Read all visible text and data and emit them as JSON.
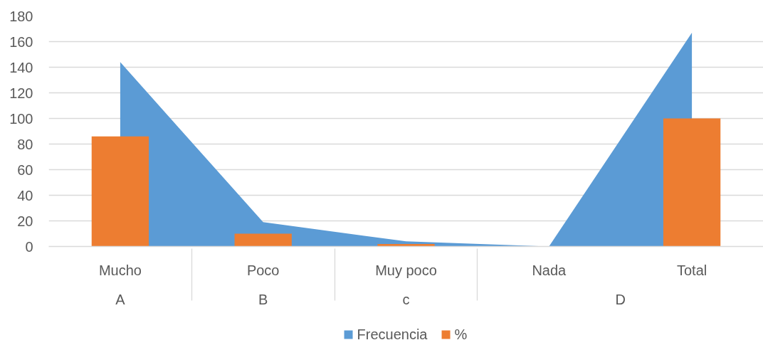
{
  "chart_data": {
    "type": "bar",
    "categories": [
      "Mucho",
      "Poco",
      "Muy poco",
      "Nada",
      "Total"
    ],
    "annotations": [
      "A",
      "B",
      "c",
      "D"
    ],
    "series": [
      {
        "name": "Frecuencia",
        "type": "area",
        "color": "#5b9bd5",
        "values": [
          144,
          19,
          4,
          0,
          167
        ]
      },
      {
        "name": "%",
        "color": "#ed7d31",
        "values": [
          86,
          10,
          2,
          0,
          100
        ]
      }
    ],
    "ylim": [
      0,
      180
    ],
    "yticks": [
      0,
      20,
      40,
      60,
      80,
      100,
      120,
      140,
      160,
      180
    ],
    "grid": "y",
    "legend": "bottom"
  }
}
